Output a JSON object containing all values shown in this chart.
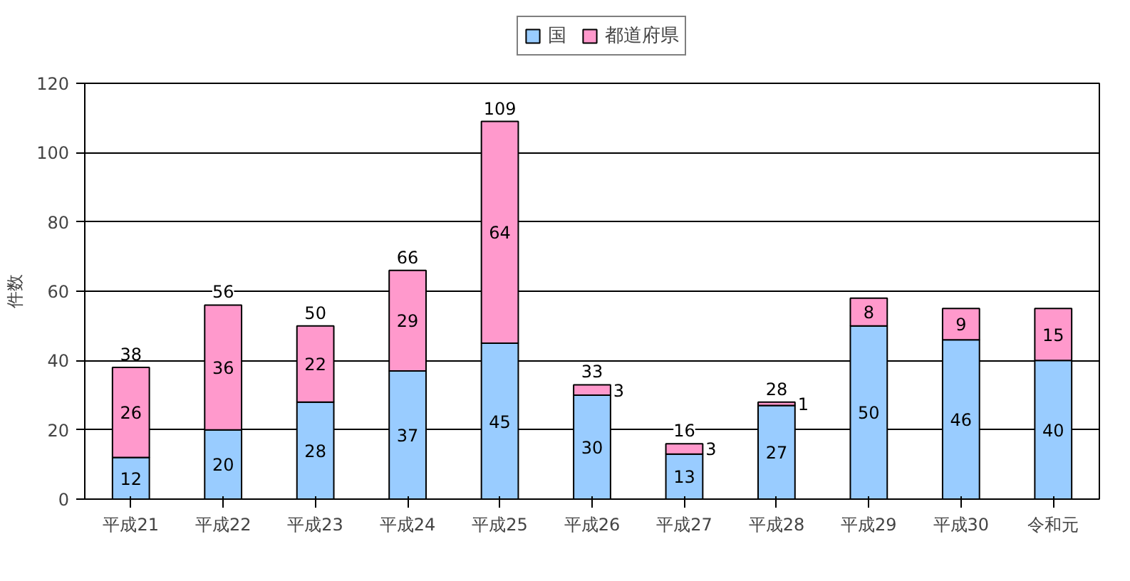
{
  "chart_data": {
    "type": "bar",
    "stacked": true,
    "ylabel": "件数",
    "categories": [
      "平成21",
      "平成22",
      "平成23",
      "平成24",
      "平成25",
      "平成26",
      "平成27",
      "平成28",
      "平成29",
      "平成30",
      "令和元"
    ],
    "series": [
      {
        "name": "国",
        "color": "#99ccff",
        "values": [
          12,
          20,
          28,
          37,
          45,
          30,
          13,
          27,
          50,
          46,
          40
        ]
      },
      {
        "name": "都道府県",
        "color": "#ff99cc",
        "values": [
          26,
          36,
          22,
          29,
          64,
          3,
          3,
          1,
          8,
          9,
          15
        ]
      }
    ],
    "totals": [
      "38",
      "56",
      "50",
      "66",
      "109",
      "33",
      "16",
      "28",
      null,
      null,
      null
    ],
    "ylim": [
      0,
      120
    ],
    "yticks": [
      0,
      20,
      40,
      60,
      80,
      100,
      120
    ],
    "grid": "y",
    "legend": "top",
    "data_labels": true
  }
}
